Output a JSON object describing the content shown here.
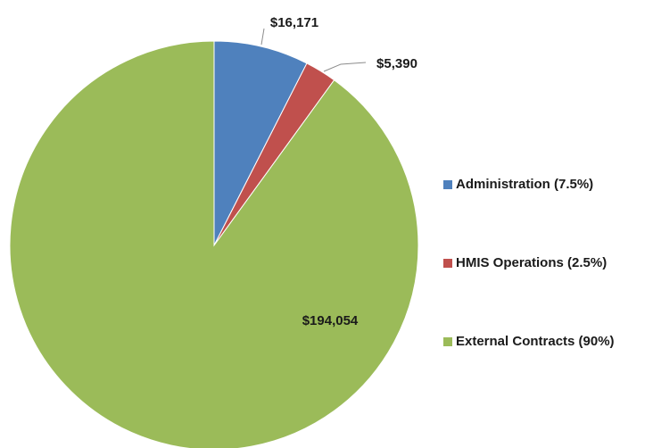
{
  "chart_data": {
    "type": "pie",
    "title": "",
    "slices": [
      {
        "name": "Administration (7.5%)",
        "value": 16171,
        "label": "$16,171",
        "color": "#4F81BD"
      },
      {
        "name": "HMIS Operations (2.5%)",
        "value": 5390,
        "label": "$5,390",
        "color": "#C0504D"
      },
      {
        "name": "External Contracts (90%)",
        "value": 194054,
        "label": "$194,054",
        "color": "#9BBB59"
      }
    ],
    "legend_position": "right"
  }
}
